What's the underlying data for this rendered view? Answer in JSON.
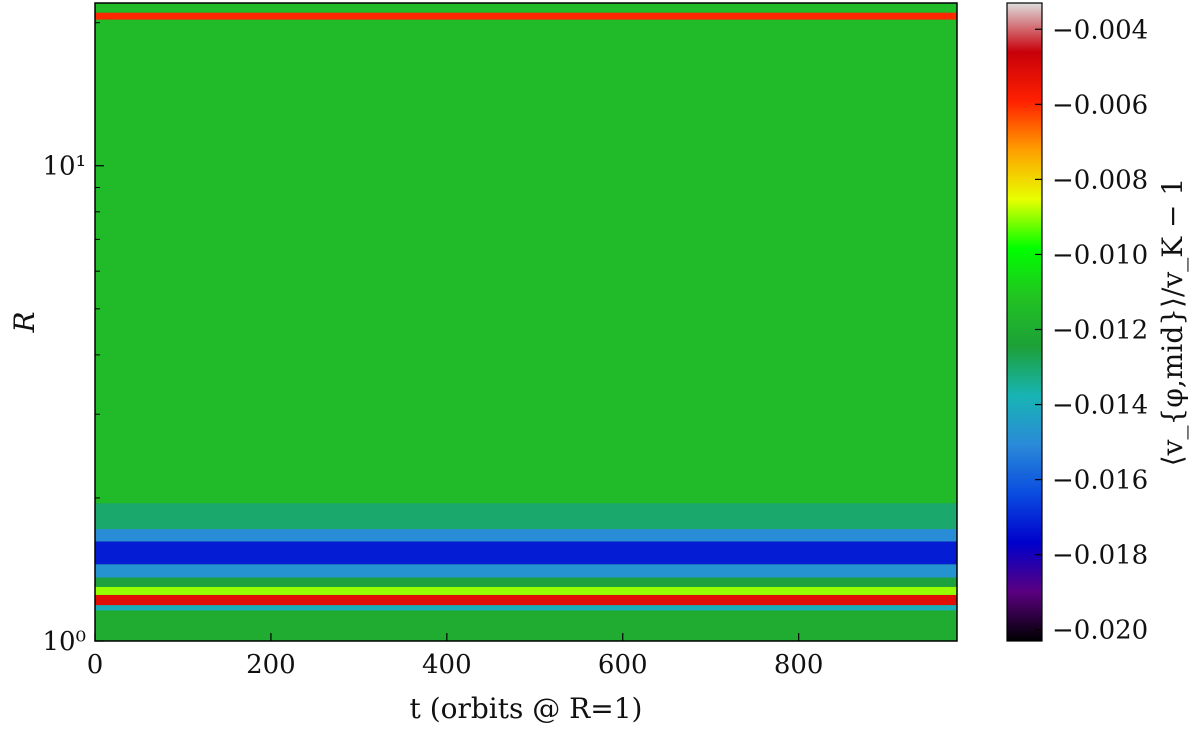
{
  "chart_data": {
    "type": "heatmap",
    "title": "",
    "xlabel": "t (orbits @ R=1)",
    "ylabel": "R",
    "colorbar_label": "⟨v_{φ,mid}⟩/v_K − 1",
    "x_scale": "linear",
    "y_scale": "log",
    "xlim": [
      0,
      980
    ],
    "ylim": [
      1,
      22
    ],
    "x_ticks": [
      0,
      200,
      400,
      600,
      800
    ],
    "x_tick_labels": [
      "0",
      "200",
      "400",
      "600",
      "800"
    ],
    "y_ticks": [
      1,
      10
    ],
    "y_tick_labels": [
      "10⁰",
      "10¹"
    ],
    "color_range": [
      -0.0203,
      -0.0033
    ],
    "colorbar_ticks": [
      -0.004,
      -0.006,
      -0.008,
      -0.01,
      -0.012,
      -0.014,
      -0.016,
      -0.018,
      -0.02
    ],
    "colorbar_tick_labels": [
      "−0.004",
      "−0.006",
      "−0.008",
      "−0.010",
      "−0.012",
      "−0.014",
      "−0.016",
      "−0.018",
      "−0.020"
    ],
    "colormap": [
      "#000000",
      "#5a0080",
      "#0000cc",
      "#0a4ce0",
      "#2a8ad8",
      "#18b4b4",
      "#1da038",
      "#22c322",
      "#00ff00",
      "#e8ff00",
      "#ffa000",
      "#ff2000",
      "#c8000a",
      "#dddddd"
    ],
    "radial_bands": [
      {
        "r_min": 1.0,
        "r_max": 1.16,
        "value": -0.012
      },
      {
        "r_min": 1.16,
        "r_max": 1.19,
        "value": -0.014
      },
      {
        "r_min": 1.19,
        "r_max": 1.25,
        "value": -0.0052
      },
      {
        "r_min": 1.25,
        "r_max": 1.3,
        "value": -0.009
      },
      {
        "r_min": 1.3,
        "r_max": 1.36,
        "value": -0.0125
      },
      {
        "r_min": 1.36,
        "r_max": 1.45,
        "value": -0.0148
      },
      {
        "r_min": 1.45,
        "r_max": 1.62,
        "value": -0.0172
      },
      {
        "r_min": 1.62,
        "r_max": 1.72,
        "value": -0.015
      },
      {
        "r_min": 1.72,
        "r_max": 1.95,
        "value": -0.013
      },
      {
        "r_min": 1.95,
        "r_max": 20.3,
        "value": -0.0115
      },
      {
        "r_min": 20.3,
        "r_max": 21.0,
        "value": -0.006
      },
      {
        "r_min": 21.0,
        "r_max": 22.0,
        "value": -0.0115
      }
    ]
  }
}
